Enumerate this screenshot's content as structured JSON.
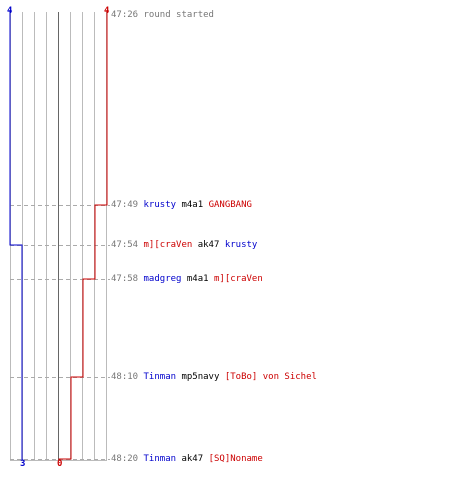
{
  "colors": {
    "team_blue": "#0000cc",
    "team_red": "#cc0000",
    "time_text": "#777777",
    "weapon_text": "#000000",
    "grid": "#bbbbbb",
    "grid_center": "#666666",
    "dashed": "#aaaaaa"
  },
  "scores": {
    "blue_start": "4",
    "red_start": "4",
    "blue_end": "3",
    "red_end": "0"
  },
  "events": [
    {
      "time": "47:26",
      "text": "round started"
    },
    {
      "time": "47:49",
      "killer": "krusty",
      "killer_team": "blue",
      "weapon": "m4a1",
      "victim": "GANGBANG",
      "victim_team": "red"
    },
    {
      "time": "47:54",
      "killer": "m][craVen",
      "killer_team": "red",
      "weapon": "ak47",
      "victim": "krusty",
      "victim_team": "blue"
    },
    {
      "time": "47:58",
      "killer": "madgreg",
      "killer_team": "blue",
      "weapon": "m4a1",
      "victim": "m][craVen",
      "victim_team": "red"
    },
    {
      "time": "48:10",
      "killer": "Tinman",
      "killer_team": "blue",
      "weapon": "mp5navy",
      "victim": "[ToBo] von Sichel",
      "victim_team": "red"
    },
    {
      "time": "48:20",
      "killer": "Tinman",
      "killer_team": "blue",
      "weapon": "ak47",
      "victim": "[SQ]Noname",
      "victim_team": "red"
    }
  ]
}
